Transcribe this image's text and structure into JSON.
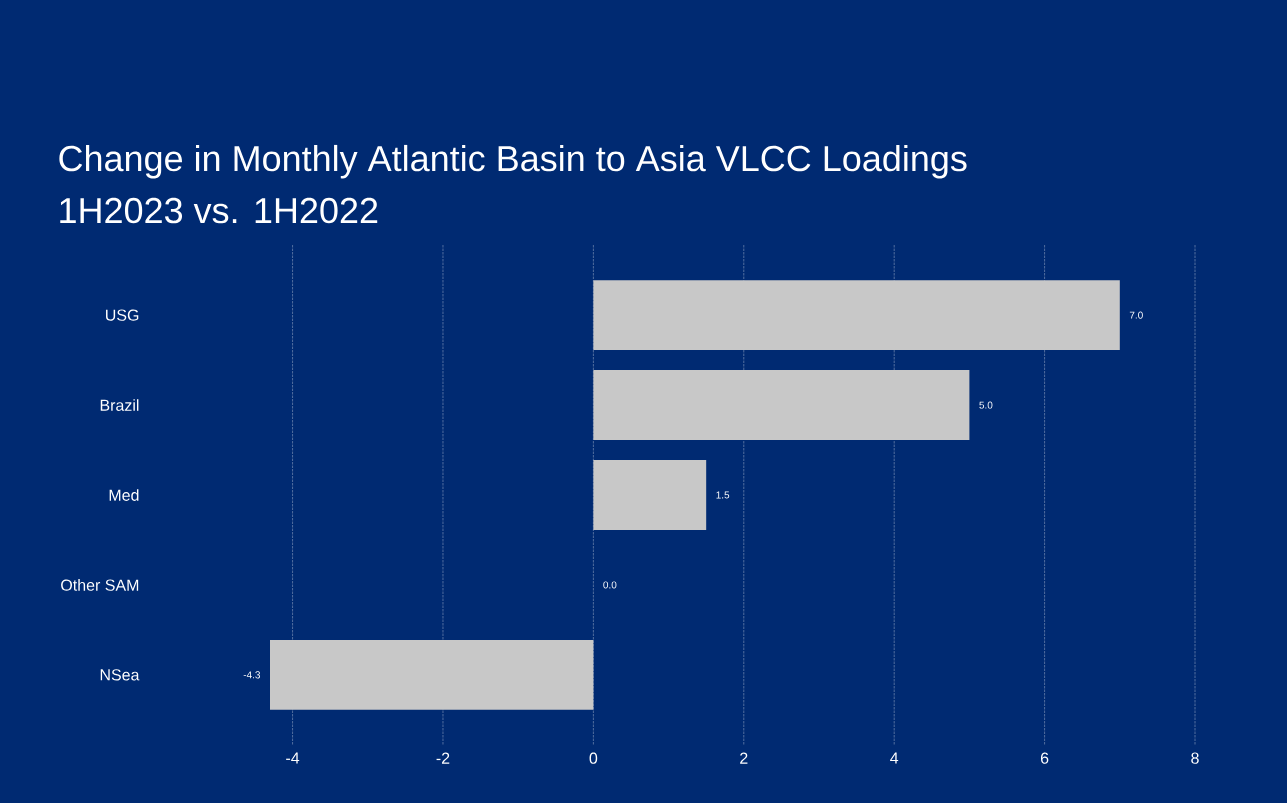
{
  "chart_data": {
    "type": "bar",
    "orientation": "horizontal",
    "title": "Change in Monthly Atlantic Basin to Asia VLCC Loadings",
    "subtitle": "1H2023 vs. 1H2022",
    "categories": [
      "USG",
      "Brazil",
      "Med",
      "Other SAM",
      "NSea"
    ],
    "values": [
      7.0,
      5.0,
      1.5,
      0.0,
      -4.3
    ],
    "value_labels": [
      "7.0",
      "5.0",
      "1.5",
      "0.0",
      "-4.3"
    ],
    "color": "#c8c8c8",
    "xticks": [
      {
        "value": -4,
        "label": "-4"
      },
      {
        "value": -2,
        "label": "-2"
      },
      0,
      2,
      4,
      6,
      8
    ],
    "xlim": [
      -4.3,
      8
    ],
    "grid": "x"
  }
}
